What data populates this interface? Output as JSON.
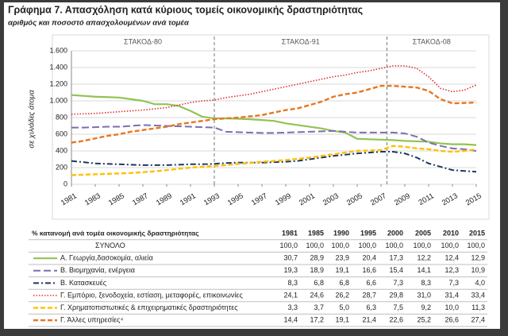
{
  "chart_data": {
    "type": "line",
    "title": "Γράφημα 7. Απασχόληση κατά κύριους τομείς οικονομικής δραστηριότητας",
    "subtitle": "αριθμός και ποσοστό απασχολουμένων ανά τομέα",
    "y_label": "σε χιλιάδες άτομα",
    "periods": [
      "ΣΤΑΚΟΔ-80",
      "ΣΤΑΚΟΔ-91",
      "ΣΤΑΚΟΔ-08"
    ],
    "breaks": [
      1993,
      2007.5
    ],
    "x": [
      1981,
      1982,
      1983,
      1984,
      1985,
      1986,
      1987,
      1988,
      1989,
      1990,
      1991,
      1992,
      1993,
      1994,
      1995,
      1996,
      1997,
      1998,
      1999,
      2000,
      2001,
      2002,
      2003,
      2004,
      2005,
      2006,
      2007,
      2008,
      2009,
      2010,
      2011,
      2012,
      2013,
      2014,
      2015
    ],
    "xlim": [
      1981,
      2015
    ],
    "xticks": [
      1981,
      1983,
      1985,
      1987,
      1989,
      1991,
      1993,
      1995,
      1997,
      1999,
      2001,
      2003,
      2005,
      2007,
      2009,
      2011,
      2013,
      2015
    ],
    "ylim": [
      0,
      1600
    ],
    "yticks": [
      0,
      200,
      400,
      600,
      800,
      {
        "value": 1000,
        "label": "1.000"
      },
      {
        "value": 1200,
        "label": "1.200"
      },
      {
        "value": 1400,
        "label": "1.400"
      },
      {
        "value": 1600,
        "label": "1.600"
      }
    ],
    "grid": true,
    "series": [
      {
        "name": "Α. Γεωργία,δασοκομία, αλιεία",
        "color": "#92c353",
        "dash": "solid",
        "values": [
          1070,
          1060,
          1050,
          1045,
          1040,
          1020,
          1000,
          960,
          960,
          940,
          880,
          810,
          790,
          790,
          785,
          780,
          770,
          760,
          730,
          710,
          690,
          670,
          640,
          620,
          545,
          540,
          535,
          530,
          520,
          515,
          510,
          490,
          480,
          480,
          470
        ]
      },
      {
        "name": "Β. Βιομηχανία, ενέργεια",
        "color": "#7b6fb0",
        "dash": "long",
        "values": [
          680,
          680,
          685,
          690,
          690,
          700,
          710,
          705,
          700,
          695,
          690,
          685,
          680,
          630,
          625,
          620,
          615,
          615,
          620,
          625,
          630,
          635,
          640,
          630,
          620,
          620,
          620,
          620,
          610,
          570,
          500,
          460,
          430,
          420,
          400
        ]
      },
      {
        "name": "Β. Κατασκευές",
        "color": "#1f3864",
        "dash": "dashdot",
        "values": [
          280,
          265,
          250,
          245,
          240,
          235,
          230,
          230,
          230,
          235,
          240,
          240,
          245,
          255,
          260,
          260,
          260,
          265,
          270,
          280,
          300,
          320,
          340,
          355,
          370,
          380,
          390,
          390,
          370,
          320,
          250,
          210,
          170,
          160,
          150
        ]
      },
      {
        "name": "Γ. Εμπόριο, ξενοδοχεία, εστίαση,  μεταφορές, επικοινωνίες",
        "color": "#e03030",
        "dash": "dot",
        "values": [
          840,
          845,
          850,
          860,
          870,
          880,
          890,
          905,
          920,
          950,
          980,
          1000,
          1010,
          1040,
          1060,
          1080,
          1110,
          1140,
          1170,
          1200,
          1230,
          1260,
          1290,
          1310,
          1340,
          1360,
          1390,
          1420,
          1420,
          1390,
          1290,
          1150,
          1110,
          1130,
          1190
        ]
      },
      {
        "name": "Γ. Χρηματοπιστωτικές & επιχειρηματικές δραστηριότητες",
        "color": "#ffc000",
        "dash": "dash",
        "values": [
          110,
          115,
          120,
          125,
          130,
          135,
          145,
          155,
          170,
          185,
          200,
          210,
          220,
          230,
          245,
          255,
          270,
          280,
          290,
          305,
          320,
          340,
          360,
          380,
          400,
          405,
          410,
          460,
          450,
          430,
          420,
          400,
          390,
          400,
          420
        ]
      },
      {
        "name": "Γ. Άλλες υπηρεσίες⁴",
        "color": "#e87722",
        "dash": "dash",
        "values": [
          500,
          520,
          550,
          580,
          600,
          630,
          650,
          670,
          690,
          720,
          740,
          760,
          780,
          790,
          800,
          815,
          830,
          860,
          890,
          910,
          950,
          990,
          1050,
          1080,
          1100,
          1140,
          1180,
          1180,
          1170,
          1160,
          1120,
          1020,
          970,
          975,
          980
        ]
      }
    ]
  },
  "table": {
    "header": "% κατανομή ανά τομέα οικονομικής δραστηριότητας",
    "years": [
      "1981",
      "1985",
      "1990",
      "1995",
      "2000",
      "2005",
      "2010",
      "2015"
    ],
    "total": {
      "label": "ΣΥΝΟΛΟ",
      "values": [
        "100,0",
        "100,0",
        "100,0",
        "100,0",
        "100,0",
        "100,0",
        "100,0",
        "100,0"
      ]
    },
    "rows": [
      [
        "30,7",
        "28,9",
        "23,9",
        "20,4",
        "17,3",
        "12,2",
        "12,4",
        "12,9"
      ],
      [
        "19,3",
        "18,9",
        "19,1",
        "16,6",
        "15,4",
        "14,1",
        "12,3",
        "10,9"
      ],
      [
        "8,3",
        "6,8",
        "6,8",
        "6,6",
        "7,3",
        "8,3",
        "7,3",
        "4,0"
      ],
      [
        "24,1",
        "24,6",
        "26,2",
        "28,7",
        "29,8",
        "31,0",
        "31,4",
        "33,4"
      ],
      [
        "3,3",
        "3,7",
        "5,0",
        "6,3",
        "7,5",
        "9,2",
        "10,0",
        "11,3"
      ],
      [
        "14,4",
        "17,2",
        "19,1",
        "21,4",
        "22,6",
        "25,2",
        "26,6",
        "27,4"
      ]
    ]
  }
}
